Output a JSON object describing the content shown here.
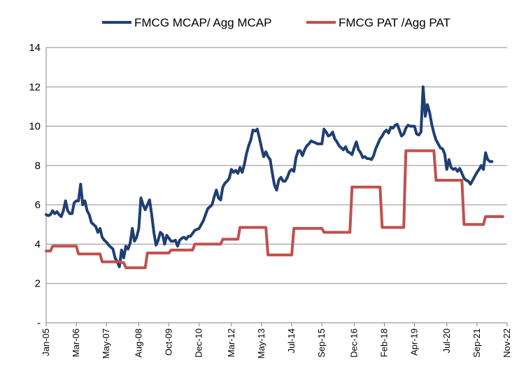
{
  "chart_data": {
    "type": "line",
    "title": "",
    "xlabel": "",
    "ylabel": "",
    "ylim": [
      0,
      14
    ],
    "yticks": [
      2,
      4,
      6,
      8,
      10,
      12,
      14
    ],
    "y_zero_label": "-",
    "legend_position": "top",
    "grid": "horizontal",
    "x_tick_labels": [
      "Jan-05",
      "Mar-06",
      "May-07",
      "Aug-08",
      "Oct-09",
      "Dec-10",
      "Mar-12",
      "May-13",
      "Jul-14",
      "Sep-15",
      "Dec-16",
      "Feb-18",
      "Apr-19",
      "Jul-20",
      "Sep-21",
      "Nov-22"
    ],
    "x_tick_positions": [
      0,
      14,
      28,
      43,
      57,
      71,
      86,
      100,
      114,
      128,
      143,
      157,
      171,
      186,
      200,
      214
    ],
    "x_max": 214,
    "series": [
      {
        "name": "FMCG MCAP/ Agg MCAP",
        "color": "#1f3f73",
        "points": [
          [
            0,
            5.5
          ],
          [
            1,
            5.45
          ],
          [
            2,
            5.5
          ],
          [
            3,
            5.7
          ],
          [
            4,
            5.55
          ],
          [
            5,
            5.65
          ],
          [
            6,
            5.5
          ],
          [
            7,
            5.4
          ],
          [
            8,
            5.7
          ],
          [
            9,
            6.2
          ],
          [
            10,
            5.7
          ],
          [
            11,
            5.55
          ],
          [
            12,
            5.55
          ],
          [
            13,
            6.1
          ],
          [
            14,
            6.2
          ],
          [
            15,
            6.2
          ],
          [
            16,
            7.05
          ],
          [
            17,
            6.0
          ],
          [
            18,
            6.2
          ],
          [
            19,
            5.7
          ],
          [
            20,
            5.5
          ],
          [
            21,
            5.1
          ],
          [
            22,
            5.0
          ],
          [
            23,
            4.9
          ],
          [
            24,
            4.6
          ],
          [
            25,
            4.8
          ],
          [
            26,
            4.35
          ],
          [
            27,
            4.2
          ],
          [
            28,
            4.1
          ],
          [
            29,
            3.95
          ],
          [
            30,
            3.85
          ],
          [
            31,
            3.75
          ],
          [
            32,
            3.3
          ],
          [
            33,
            3.1
          ],
          [
            34,
            2.85
          ],
          [
            35,
            3.7
          ],
          [
            36,
            3.3
          ],
          [
            37,
            3.9
          ],
          [
            38,
            3.75
          ],
          [
            39,
            4.05
          ],
          [
            40,
            4.8
          ],
          [
            41,
            4.15
          ],
          [
            42,
            4.35
          ],
          [
            43,
            4.8
          ],
          [
            44,
            6.35
          ],
          [
            45,
            6.0
          ],
          [
            46,
            5.75
          ],
          [
            47,
            6.0
          ],
          [
            48,
            6.25
          ],
          [
            49,
            5.5
          ],
          [
            50,
            4.6
          ],
          [
            51,
            3.95
          ],
          [
            52,
            4.2
          ],
          [
            53,
            4.6
          ],
          [
            54,
            4.5
          ],
          [
            55,
            4.0
          ],
          [
            56,
            4.45
          ],
          [
            57,
            4.3
          ],
          [
            58,
            4.15
          ],
          [
            59,
            4.15
          ],
          [
            60,
            4.2
          ],
          [
            61,
            3.9
          ],
          [
            62,
            4.2
          ],
          [
            63,
            4.3
          ],
          [
            64,
            4.35
          ],
          [
            65,
            4.25
          ],
          [
            66,
            4.4
          ],
          [
            67,
            4.4
          ],
          [
            68,
            4.55
          ],
          [
            69,
            4.7
          ],
          [
            70,
            4.75
          ],
          [
            71,
            4.8
          ],
          [
            72,
            5.0
          ],
          [
            73,
            5.2
          ],
          [
            74,
            5.5
          ],
          [
            75,
            5.8
          ],
          [
            76,
            5.9
          ],
          [
            77,
            6.0
          ],
          [
            78,
            6.4
          ],
          [
            79,
            6.75
          ],
          [
            80,
            6.35
          ],
          [
            81,
            6.25
          ],
          [
            82,
            6.9
          ],
          [
            83,
            7.1
          ],
          [
            84,
            7.2
          ],
          [
            85,
            7.35
          ],
          [
            86,
            7.8
          ],
          [
            87,
            7.65
          ],
          [
            88,
            7.75
          ],
          [
            89,
            7.6
          ],
          [
            90,
            7.9
          ],
          [
            91,
            7.65
          ],
          [
            92,
            8.05
          ],
          [
            93,
            8.6
          ],
          [
            94,
            9.0
          ],
          [
            95,
            9.3
          ],
          [
            96,
            9.8
          ],
          [
            97,
            9.75
          ],
          [
            98,
            9.85
          ],
          [
            99,
            9.4
          ],
          [
            100,
            8.9
          ],
          [
            101,
            8.45
          ],
          [
            102,
            8.7
          ],
          [
            103,
            8.45
          ],
          [
            104,
            8.3
          ],
          [
            105,
            7.6
          ],
          [
            106,
            7.0
          ],
          [
            107,
            6.75
          ],
          [
            108,
            7.25
          ],
          [
            109,
            7.4
          ],
          [
            110,
            7.2
          ],
          [
            111,
            7.2
          ],
          [
            112,
            7.4
          ],
          [
            113,
            7.7
          ],
          [
            114,
            7.8
          ],
          [
            115,
            7.7
          ],
          [
            116,
            8.4
          ],
          [
            117,
            8.75
          ],
          [
            118,
            8.75
          ],
          [
            119,
            8.5
          ],
          [
            120,
            8.8
          ],
          [
            121,
            9.0
          ],
          [
            122,
            9.1
          ],
          [
            123,
            9.25
          ],
          [
            124,
            9.2
          ],
          [
            125,
            9.15
          ],
          [
            126,
            9.1
          ],
          [
            127,
            9.1
          ],
          [
            128,
            9.1
          ],
          [
            129,
            9.85
          ],
          [
            130,
            9.7
          ],
          [
            131,
            9.5
          ],
          [
            132,
            9.55
          ],
          [
            133,
            9.7
          ],
          [
            134,
            9.35
          ],
          [
            135,
            9.2
          ],
          [
            136,
            9.0
          ],
          [
            137,
            8.9
          ],
          [
            138,
            8.8
          ],
          [
            139,
            8.95
          ],
          [
            140,
            8.7
          ],
          [
            141,
            8.65
          ],
          [
            142,
            8.55
          ],
          [
            143,
            8.9
          ],
          [
            144,
            9.2
          ],
          [
            145,
            8.8
          ],
          [
            146,
            8.65
          ],
          [
            147,
            8.4
          ],
          [
            148,
            8.45
          ],
          [
            149,
            8.35
          ],
          [
            150,
            8.35
          ],
          [
            151,
            8.3
          ],
          [
            152,
            8.5
          ],
          [
            153,
            8.85
          ],
          [
            154,
            9.1
          ],
          [
            155,
            9.35
          ],
          [
            156,
            9.5
          ],
          [
            157,
            9.7
          ],
          [
            158,
            9.8
          ],
          [
            159,
            9.65
          ],
          [
            160,
            9.95
          ],
          [
            161,
            9.9
          ],
          [
            162,
            10.05
          ],
          [
            163,
            10.1
          ],
          [
            164,
            9.8
          ],
          [
            165,
            9.5
          ],
          [
            166,
            9.6
          ],
          [
            167,
            9.9
          ],
          [
            168,
            10.05
          ],
          [
            169,
            10.0
          ],
          [
            170,
            10.0
          ],
          [
            171,
            10.0
          ],
          [
            172,
            9.6
          ],
          [
            173,
            9.55
          ],
          [
            174,
            9.7
          ],
          [
            175,
            12.0
          ],
          [
            176,
            10.5
          ],
          [
            177,
            11.1
          ],
          [
            178,
            10.7
          ],
          [
            179,
            10.1
          ],
          [
            180,
            9.65
          ],
          [
            181,
            9.3
          ],
          [
            182,
            9.1
          ],
          [
            183,
            8.9
          ],
          [
            184,
            8.85
          ],
          [
            185,
            8.6
          ],
          [
            186,
            7.8
          ],
          [
            187,
            8.3
          ],
          [
            188,
            7.9
          ],
          [
            189,
            7.8
          ],
          [
            190,
            7.85
          ],
          [
            191,
            7.7
          ],
          [
            192,
            7.85
          ],
          [
            193,
            7.6
          ],
          [
            194,
            7.35
          ],
          [
            195,
            7.25
          ],
          [
            196,
            7.2
          ],
          [
            197,
            7.05
          ],
          [
            198,
            7.25
          ],
          [
            199,
            7.45
          ],
          [
            200,
            7.65
          ],
          [
            201,
            7.8
          ],
          [
            202,
            8.0
          ],
          [
            203,
            7.8
          ],
          [
            204,
            8.65
          ],
          [
            205,
            8.3
          ],
          [
            206,
            8.2
          ],
          [
            207,
            8.2
          ]
        ]
      },
      {
        "name": "FMCG PAT /Agg PAT",
        "color": "#c0504d",
        "points": [
          [
            0,
            3.65
          ],
          [
            2,
            3.65
          ],
          [
            3,
            3.9
          ],
          [
            14,
            3.9
          ],
          [
            15,
            3.5
          ],
          [
            25,
            3.5
          ],
          [
            26,
            3.1
          ],
          [
            34,
            3.1
          ],
          [
            36,
            3.05
          ],
          [
            37,
            2.8
          ],
          [
            46,
            2.8
          ],
          [
            47,
            3.55
          ],
          [
            57,
            3.55
          ],
          [
            58,
            3.7
          ],
          [
            68,
            3.7
          ],
          [
            69,
            4.0
          ],
          [
            81,
            4.0
          ],
          [
            82,
            4.25
          ],
          [
            89,
            4.25
          ],
          [
            90,
            4.85
          ],
          [
            102,
            4.85
          ],
          [
            103,
            3.45
          ],
          [
            114,
            3.45
          ],
          [
            115,
            4.8
          ],
          [
            128,
            4.8
          ],
          [
            129,
            4.6
          ],
          [
            141,
            4.6
          ],
          [
            142,
            6.9
          ],
          [
            155,
            6.9
          ],
          [
            156,
            4.85
          ],
          [
            166,
            4.85
          ],
          [
            167,
            8.75
          ],
          [
            180,
            8.75
          ],
          [
            181,
            7.25
          ],
          [
            193,
            7.25
          ],
          [
            194,
            5.0
          ],
          [
            203,
            5.0
          ],
          [
            204,
            5.4
          ],
          [
            212,
            5.4
          ]
        ]
      }
    ]
  }
}
